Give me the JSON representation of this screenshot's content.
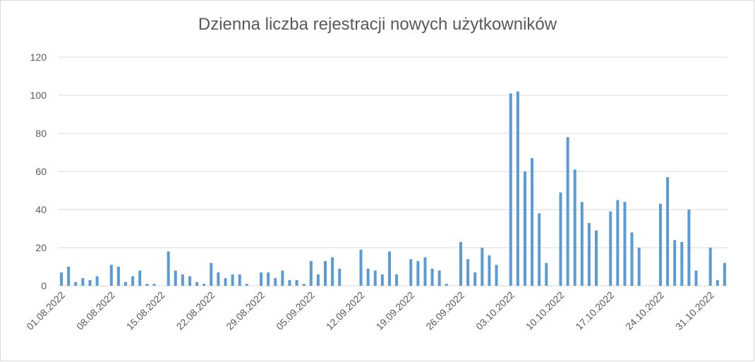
{
  "chart_data": {
    "type": "bar",
    "title": "Dzienna liczba rejestracji nowych użytkowników",
    "categories": [
      "01.08.2022",
      null,
      null,
      null,
      null,
      null,
      null,
      "08.08.2022",
      null,
      null,
      null,
      null,
      null,
      null,
      "15.08.2022",
      null,
      null,
      null,
      null,
      null,
      null,
      "22.08.2022",
      null,
      null,
      null,
      null,
      null,
      null,
      "29.08.2022",
      null,
      null,
      null,
      null,
      null,
      null,
      "05.09.2022",
      null,
      null,
      null,
      null,
      null,
      null,
      "12.09.2022",
      null,
      null,
      null,
      null,
      null,
      null,
      "19.09.2022",
      null,
      null,
      null,
      null,
      null,
      null,
      "26.09.2022",
      null,
      null,
      null,
      null,
      null,
      null,
      "03.10.2022",
      null,
      null,
      null,
      null,
      null,
      null,
      "10.10.2022",
      null,
      null,
      null,
      null,
      null,
      null,
      "17.10.2022",
      null,
      null,
      null,
      null,
      null,
      null,
      "24.10.2022",
      null,
      null,
      null,
      null,
      null,
      null,
      "31.10.2022",
      null,
      null
    ],
    "values": [
      7,
      10,
      2,
      4,
      3,
      5,
      0,
      11,
      10,
      2,
      5,
      8,
      1,
      1,
      0,
      18,
      8,
      6,
      5,
      2,
      1,
      12,
      7,
      4,
      6,
      6,
      1,
      0,
      7,
      7,
      4,
      8,
      3,
      3,
      1,
      13,
      6,
      13,
      15,
      9,
      0,
      0,
      19,
      9,
      8,
      6,
      18,
      6,
      0,
      14,
      13,
      15,
      9,
      8,
      1,
      0,
      23,
      14,
      7,
      20,
      16,
      11,
      0,
      101,
      102,
      60,
      67,
      38,
      12,
      0,
      49,
      78,
      61,
      44,
      33,
      29,
      0,
      39,
      45,
      44,
      28,
      20,
      0,
      0,
      43,
      57,
      24,
      23,
      40,
      8,
      0,
      20,
      3,
      12
    ],
    "color": "#5b9bd5",
    "ylim": [
      0,
      120
    ],
    "yticks": [
      0,
      20,
      40,
      60,
      80,
      100,
      120
    ],
    "grid": true
  }
}
